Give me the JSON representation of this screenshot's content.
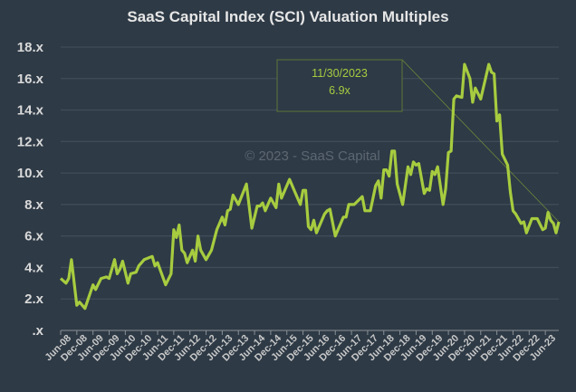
{
  "chart_data": {
    "type": "line",
    "title": "SaaS Capital Index (SCI) Valuation Multiples",
    "watermark": "© 2023 - SaaS Capital",
    "xlabel": "",
    "ylabel": "",
    "ylim": [
      0,
      18
    ],
    "y_ticks": [
      0,
      2,
      4,
      6,
      8,
      10,
      12,
      14,
      16,
      18
    ],
    "y_tick_labels": [
      ".x",
      "2.x",
      "4.x",
      "6.x",
      "8.x",
      "10.x",
      "12.x",
      "14.x",
      "16.x",
      "18.x"
    ],
    "x_range": [
      "2008-06",
      "2023-11"
    ],
    "x_tick_labels": [
      "Jun-08",
      "Dec-08",
      "Jun-09",
      "Dec-09",
      "Jun-10",
      "Dec-10",
      "Jun-11",
      "Dec-11",
      "Jun-12",
      "Dec-12",
      "Jun-13",
      "Dec-13",
      "Jun-14",
      "Dec-14",
      "Jun-15",
      "Dec-15",
      "Jun-16",
      "Dec-16",
      "Jun-17",
      "Dec-17",
      "Jun-18",
      "Dec-18",
      "Jun-19",
      "Dec-19",
      "Jun-20",
      "Dec-20",
      "Jun-21",
      "Dec-21",
      "Jun-22",
      "Dec-22",
      "Jun-23"
    ],
    "grid": "horizontal",
    "line_color": "#a7cc3f",
    "background_color": "#2e3a46",
    "annotation": {
      "date": "11/30/2023",
      "value": "6.9x"
    },
    "series": [
      {
        "x": [
          "2008-06",
          "2008-08",
          "2008-09",
          "2008-10",
          "2008-12",
          "2009-01",
          "2009-03",
          "2009-06",
          "2009-07",
          "2009-09",
          "2009-11",
          "2009-12",
          "2010-02",
          "2010-03",
          "2010-04",
          "2010-05",
          "2010-07",
          "2010-08",
          "2010-10",
          "2010-11",
          "2011-01",
          "2011-04",
          "2011-05",
          "2011-06",
          "2011-09",
          "2011-11",
          "2011-12",
          "2012-01",
          "2012-02",
          "2012-03",
          "2012-04",
          "2012-05",
          "2012-07",
          "2012-08",
          "2012-09",
          "2012-10",
          "2012-12",
          "2013-02",
          "2013-04",
          "2013-06",
          "2013-07",
          "2013-08",
          "2013-09",
          "2013-10",
          "2013-12",
          "2014-03",
          "2014-05",
          "2014-07",
          "2014-08",
          "2014-09",
          "2014-10",
          "2014-12",
          "2015-02",
          "2015-03",
          "2015-04",
          "2015-07",
          "2015-09",
          "2015-11",
          "2015-12",
          "2016-01",
          "2016-02",
          "2016-03",
          "2016-04",
          "2016-05",
          "2016-08",
          "2016-09",
          "2016-10",
          "2016-12",
          "2017-03",
          "2017-04",
          "2017-05",
          "2017-07",
          "2017-10",
          "2017-11",
          "2018-01",
          "2018-03",
          "2018-04",
          "2018-05",
          "2018-06",
          "2018-07",
          "2018-08",
          "2018-09",
          "2018-10",
          "2018-11",
          "2019-01",
          "2019-03",
          "2019-04",
          "2019-05",
          "2019-06",
          "2019-07",
          "2019-09",
          "2019-10",
          "2019-11",
          "2019-12",
          "2020-01",
          "2020-02",
          "2020-04",
          "2020-05",
          "2020-06",
          "2020-07",
          "2020-08",
          "2020-09",
          "2020-11",
          "2020-12",
          "2021-02",
          "2021-03",
          "2021-04",
          "2021-06",
          "2021-09",
          "2021-10",
          "2021-11",
          "2021-12",
          "2022-01",
          "2022-02",
          "2022-04",
          "2022-05",
          "2022-06",
          "2022-07",
          "2022-09",
          "2022-10",
          "2022-11",
          "2023-01",
          "2023-03",
          "2023-05",
          "2023-06",
          "2023-07",
          "2023-08",
          "2023-09",
          "2023-10",
          "2023-11"
        ],
        "y": [
          3.3,
          3.0,
          3.3,
          4.5,
          1.6,
          1.8,
          1.4,
          2.9,
          2.6,
          3.3,
          3.4,
          3.3,
          4.5,
          3.6,
          3.9,
          4.4,
          3.0,
          3.6,
          3.7,
          4.1,
          4.5,
          4.7,
          4.1,
          4.3,
          2.9,
          3.6,
          6.4,
          5.9,
          6.7,
          5.1,
          4.9,
          4.3,
          5.1,
          4.4,
          6.0,
          5.1,
          4.5,
          5.1,
          6.4,
          7.2,
          6.7,
          7.6,
          7.7,
          8.6,
          8.0,
          9.3,
          6.5,
          7.9,
          7.9,
          8.1,
          7.6,
          8.4,
          7.8,
          9.3,
          8.4,
          9.6,
          8.8,
          8.0,
          8.9,
          8.9,
          6.6,
          6.4,
          7.0,
          6.2,
          7.4,
          7.6,
          7.7,
          6.0,
          7.2,
          7.2,
          8.0,
          8.0,
          8.5,
          7.6,
          7.6,
          9.2,
          9.5,
          8.4,
          10.2,
          10.2,
          9.8,
          11.4,
          11.4,
          9.3,
          8.0,
          10.4,
          9.9,
          10.7,
          10.5,
          10.6,
          8.7,
          9.0,
          8.9,
          10.1,
          9.9,
          10.4,
          8.0,
          9.0,
          11.3,
          11.4,
          14.7,
          14.9,
          14.8,
          16.9,
          16.0,
          14.5,
          15.4,
          14.7,
          16.9,
          16.4,
          16.3,
          13.3,
          13.7,
          11.2,
          10.5,
          8.8,
          7.6,
          7.4,
          6.8,
          6.9,
          6.2,
          7.1,
          7.1,
          6.4,
          6.5,
          7.5,
          7.0,
          6.8,
          6.2,
          6.9
        ]
      }
    ]
  }
}
